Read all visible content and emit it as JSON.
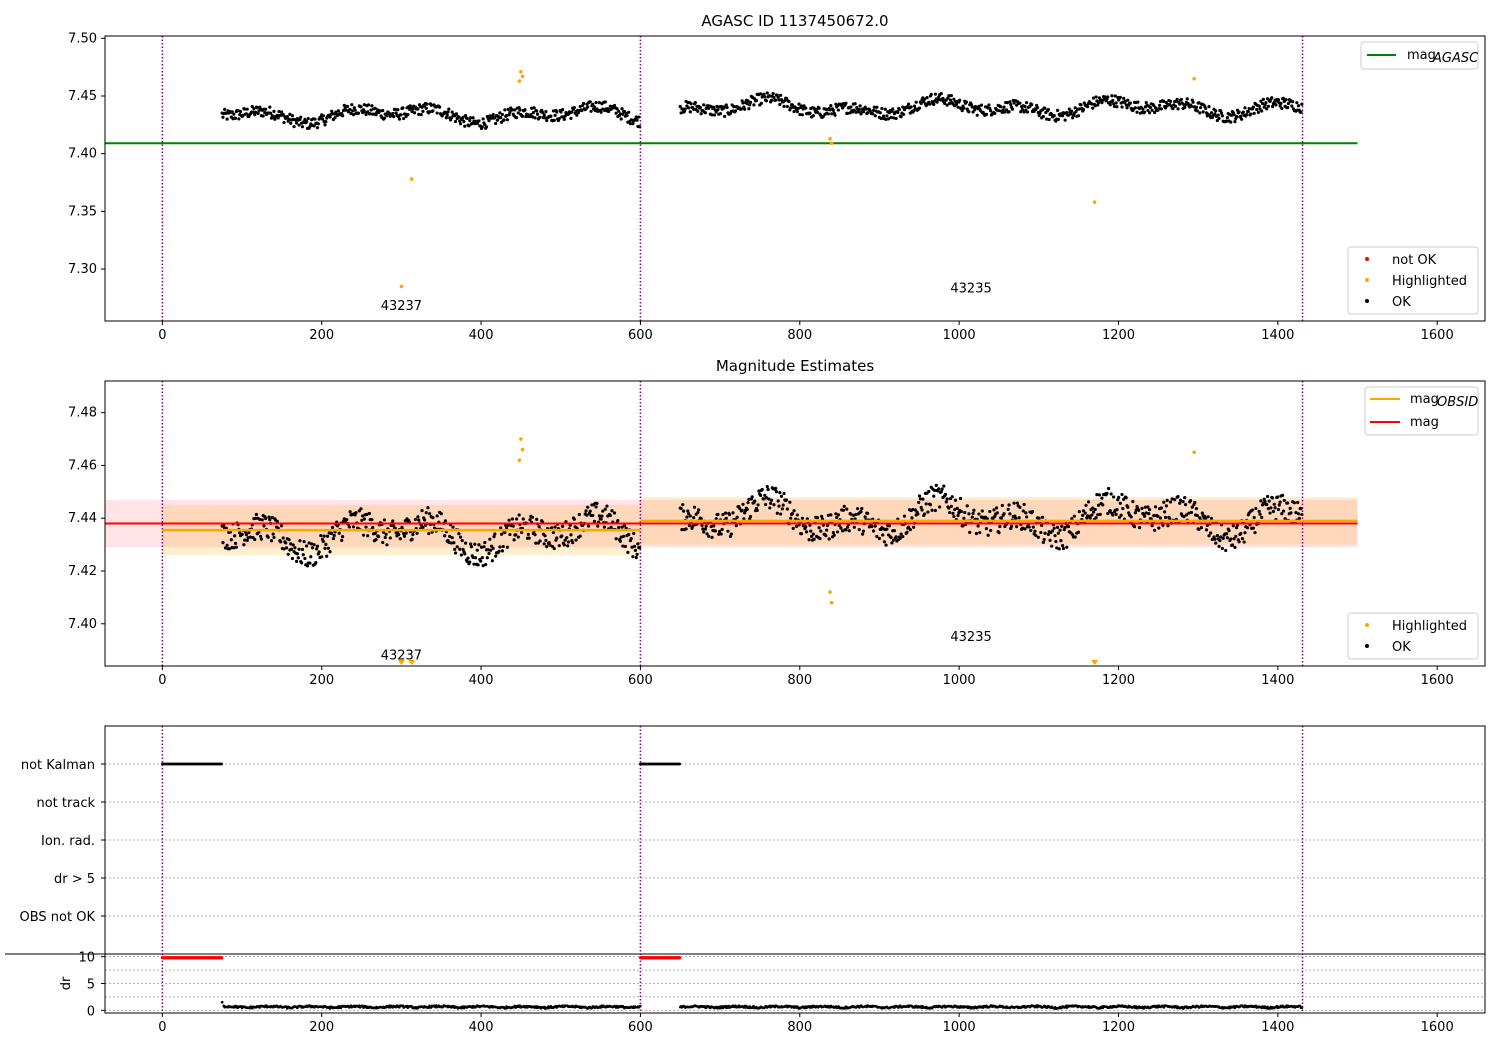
{
  "chart_data": [
    {
      "type": "scatter",
      "title": "AGASC ID 1137450672.0",
      "xlim": [
        -72,
        1660
      ],
      "ylim": [
        7.255,
        7.502
      ],
      "x_ticks": [
        0,
        200,
        400,
        600,
        800,
        1000,
        1200,
        1400,
        1600
      ],
      "y_ticks": [
        7.3,
        7.35,
        7.4,
        7.45,
        7.5
      ],
      "y_tick_labels": [
        "7.30",
        "7.35",
        "7.40",
        "7.45",
        "7.50"
      ],
      "obsid_boundaries": [
        0,
        600,
        1431
      ],
      "obsid_labels": [
        {
          "text": "43237",
          "x": 300,
          "y": 7.268
        },
        {
          "text": "43235",
          "x": 1015,
          "y": 7.283
        }
      ],
      "lines": [
        {
          "name": "mag_AGASC",
          "y": 7.409,
          "x_range": [
            -72,
            1500
          ],
          "color": "#008000"
        }
      ],
      "segments": [
        {
          "x_start": 75,
          "x_end": 600,
          "base": 7.434,
          "amp": 0.008,
          "noise": 0.005
        },
        {
          "x_start": 650,
          "x_end": 1431,
          "base": 7.44,
          "amp": 0.008,
          "noise": 0.005
        }
      ],
      "highlighted": [
        {
          "x": 300,
          "y": 7.285
        },
        {
          "x": 313,
          "y": 7.378
        },
        {
          "x": 450,
          "y": 7.471
        },
        {
          "x": 452,
          "y": 7.467
        },
        {
          "x": 448,
          "y": 7.463
        },
        {
          "x": 838,
          "y": 7.413
        },
        {
          "x": 840,
          "y": 7.409
        },
        {
          "x": 1170,
          "y": 7.358
        },
        {
          "x": 1295,
          "y": 7.465
        }
      ],
      "legend_lines": [
        {
          "label": "mag",
          "sub": "AGASC",
          "color": "#008000"
        }
      ],
      "legend_points": [
        {
          "label": "not OK",
          "color": "#ff0000"
        },
        {
          "label": "Highlighted",
          "color": "#ffa500"
        },
        {
          "label": "OK",
          "color": "#000000"
        }
      ]
    },
    {
      "type": "scatter",
      "title": "Magnitude Estimates",
      "xlim": [
        -72,
        1660
      ],
      "ylim": [
        7.384,
        7.492
      ],
      "x_ticks": [
        0,
        200,
        400,
        600,
        800,
        1000,
        1200,
        1400,
        1600
      ],
      "y_ticks": [
        7.4,
        7.42,
        7.44,
        7.46,
        7.48
      ],
      "y_tick_labels": [
        "7.40",
        "7.42",
        "7.44",
        "7.46",
        "7.48"
      ],
      "obsid_boundaries": [
        0,
        600,
        1431
      ],
      "obsid_labels": [
        {
          "text": "43237",
          "x": 300,
          "y": 7.388
        },
        {
          "text": "43235",
          "x": 1015,
          "y": 7.395
        }
      ],
      "mag_line": {
        "name": "mag",
        "y": 7.438,
        "x_range": [
          -72,
          1500
        ],
        "band": [
          7.429,
          7.447
        ],
        "color": "#ff0000",
        "band_color": "#ffc0c8"
      },
      "obsid_mags": [
        {
          "x_range": [
            0,
            600
          ],
          "y": 7.4355,
          "band": [
            7.426,
            7.445
          ]
        },
        {
          "x_range": [
            600,
            1500
          ],
          "y": 7.439,
          "band": [
            7.43,
            7.448
          ]
        }
      ],
      "segments": [
        {
          "x_start": 75,
          "x_end": 600,
          "base": 7.434,
          "amp": 0.008,
          "noise": 0.005
        },
        {
          "x_start": 650,
          "x_end": 1431,
          "base": 7.44,
          "amp": 0.008,
          "noise": 0.005
        }
      ],
      "highlighted": [
        {
          "x": 450,
          "y": 7.47
        },
        {
          "x": 452,
          "y": 7.466
        },
        {
          "x": 448,
          "y": 7.462
        },
        {
          "x": 838,
          "y": 7.412
        },
        {
          "x": 840,
          "y": 7.408
        },
        {
          "x": 1295,
          "y": 7.465
        }
      ],
      "below_axis_markers": [
        300,
        313,
        1170
      ],
      "legend_lines": [
        {
          "label": "mag",
          "sub": "OBSID",
          "color": "#ffa500"
        },
        {
          "label": "mag",
          "sub": "",
          "color": "#ff0000"
        }
      ],
      "legend_points": [
        {
          "label": "Highlighted",
          "color": "#ffa500"
        },
        {
          "label": "OK",
          "color": "#000000"
        }
      ]
    },
    {
      "type": "scatter",
      "title": "",
      "xlim": [
        -72,
        1660
      ],
      "x_ticks": [
        0,
        200,
        400,
        600,
        800,
        1000,
        1200,
        1400,
        1600
      ],
      "flag_rows": [
        "not Kalman",
        "not track",
        "Ion. rad.",
        "dr > 5",
        "OBS not OK"
      ],
      "flag_ranges": [
        {
          "row": "not Kalman",
          "ranges": [
            [
              0,
              75
            ],
            [
              600,
              650
            ]
          ]
        }
      ],
      "obsid_boundaries": [
        0,
        600,
        1431
      ],
      "dr_ylabel": "dr",
      "dr_ylim": [
        -0.5,
        10.5
      ],
      "dr_ticks": [
        0,
        5,
        10
      ],
      "dr_high_ranges": [
        [
          0,
          75
        ],
        [
          600,
          650
        ]
      ],
      "dr_high_value": 9.8,
      "dr_spike": {
        "x": 75,
        "y": 1.5
      },
      "dr_segments": [
        [
          77,
          600
        ],
        [
          650,
          1431
        ]
      ]
    }
  ]
}
